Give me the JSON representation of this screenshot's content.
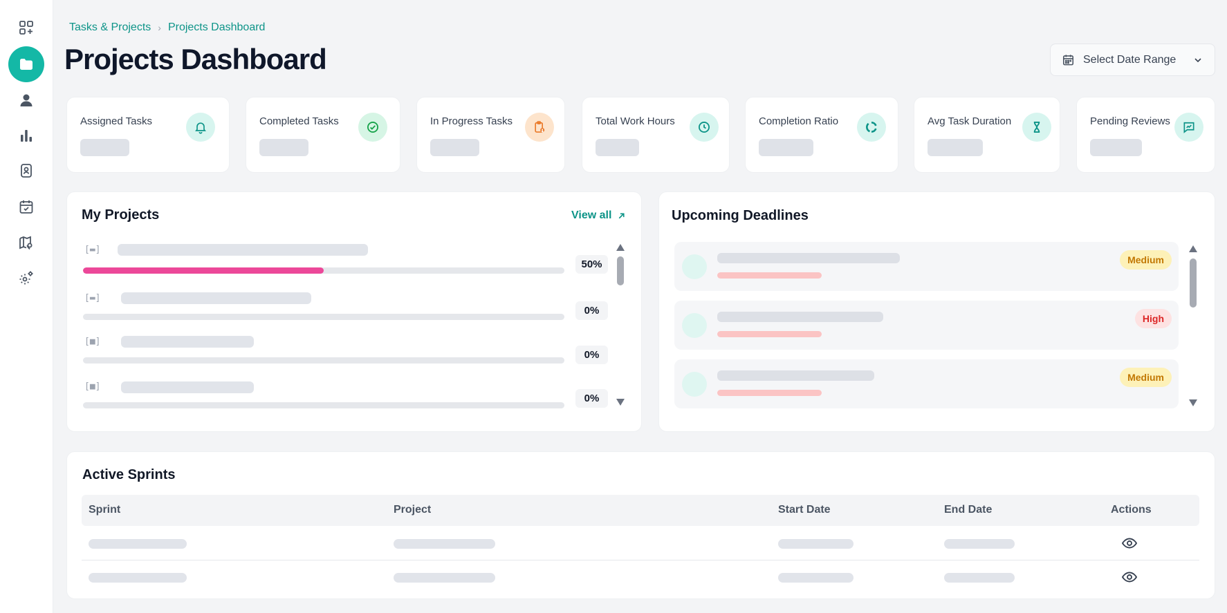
{
  "sidebar": {
    "items": [
      {
        "icon": "grid-plus-icon",
        "active": false
      },
      {
        "icon": "folder-icon",
        "active": true
      },
      {
        "icon": "user-icon",
        "active": false
      },
      {
        "icon": "bar-chart-icon",
        "active": false
      },
      {
        "icon": "id-badge-icon",
        "active": false
      },
      {
        "icon": "calendar-check-icon",
        "active": false
      },
      {
        "icon": "map-pin-icon",
        "active": false
      },
      {
        "icon": "settings-gear-icon",
        "active": false
      }
    ]
  },
  "breadcrumb": {
    "parent": "Tasks & Projects",
    "current": "Projects Dashboard"
  },
  "page_title": "Projects Dashboard",
  "date_range": {
    "label": "Select Date Range"
  },
  "stats": [
    {
      "label": "Assigned Tasks",
      "icon": "bell-icon"
    },
    {
      "label": "Completed Tasks",
      "icon": "check-circle-icon"
    },
    {
      "label": "In Progress Tasks",
      "icon": "clipboard-alert-icon"
    },
    {
      "label": "Total Work Hours",
      "icon": "clock-icon"
    },
    {
      "label": "Completion Ratio",
      "icon": "ratio-ring-icon"
    },
    {
      "label": "Avg Task Duration",
      "icon": "hourglass-icon"
    },
    {
      "label": "Pending Reviews",
      "icon": "review-chat-icon"
    }
  ],
  "my_projects": {
    "title": "My Projects",
    "view_all": "View all",
    "rows": [
      {
        "icon_text": "[▬]",
        "percent": "50%",
        "progress": 0.5,
        "color": "#ec4899"
      },
      {
        "icon_text": "[▬]",
        "percent": "0%",
        "progress": 0,
        "color": "#ec4899"
      },
      {
        "icon_text": "[■]",
        "percent": "0%",
        "progress": 0,
        "color": "#ec4899"
      },
      {
        "icon_text": "[■]",
        "percent": "0%",
        "progress": 0,
        "color": "#ec4899"
      }
    ]
  },
  "deadlines": {
    "title": "Upcoming Deadlines",
    "items": [
      {
        "priority": "Medium"
      },
      {
        "priority": "High"
      },
      {
        "priority": "Medium"
      }
    ]
  },
  "active_sprints": {
    "title": "Active Sprints",
    "columns": [
      "Sprint",
      "Project",
      "Start Date",
      "End Date",
      "Actions"
    ],
    "rows": 2
  },
  "colors": {
    "accent": "#14b8a6",
    "accent_text": "#0d9488",
    "progress": "#ec4899",
    "medium_badge": "#fdf1b8",
    "high_badge": "#fde2e2"
  }
}
